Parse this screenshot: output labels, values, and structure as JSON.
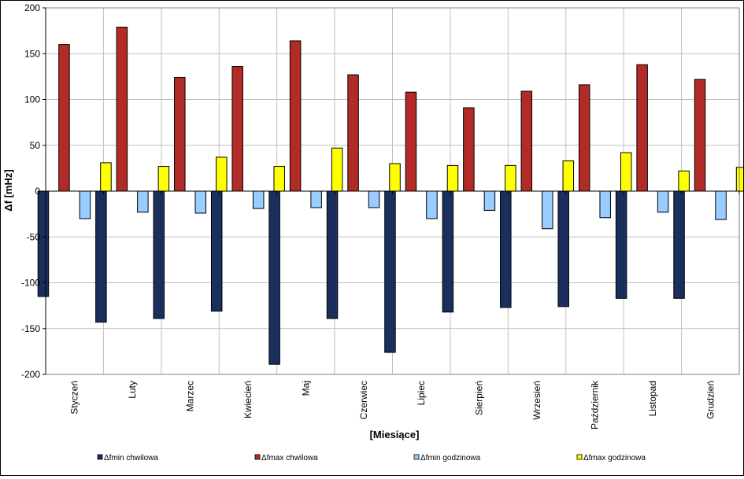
{
  "chart_data": {
    "type": "bar",
    "title": "",
    "xlabel": "[Miesiące]",
    "ylabel": "Δf [mHz]",
    "ylim": [
      -200,
      200
    ],
    "ytick_step": 50,
    "grid": true,
    "legend_position": "bottom",
    "categories": [
      "Styczeń",
      "Luty",
      "Marzec",
      "Kwiecień",
      "Maj",
      "Czerwiec",
      "Lipiec",
      "Sierpień",
      "Wrzesień",
      "Październik",
      "Listopad",
      "Grudzień"
    ],
    "series": [
      {
        "name": "Δfmin chwilowa",
        "color": "#1b2f5c",
        "values": [
          -115,
          -143,
          -139,
          -131,
          -189,
          -139,
          -176,
          -132,
          -127,
          -126,
          -117,
          -117
        ]
      },
      {
        "name": "Δfmax chwilowa",
        "color": "#b22b26",
        "values": [
          160,
          179,
          124,
          136,
          164,
          127,
          108,
          91,
          109,
          116,
          138,
          122
        ]
      },
      {
        "name": "Δfmin godzinowa",
        "color": "#99ccff",
        "values": [
          -30,
          -23,
          -24,
          -19,
          -18,
          -18,
          -30,
          -21,
          -41,
          -29,
          -23,
          -31
        ]
      },
      {
        "name": "Δfmax godzinowa",
        "color": "#ffff00",
        "values": [
          31,
          27,
          37,
          27,
          47,
          30,
          28,
          28,
          33,
          42,
          22,
          26
        ]
      }
    ]
  }
}
